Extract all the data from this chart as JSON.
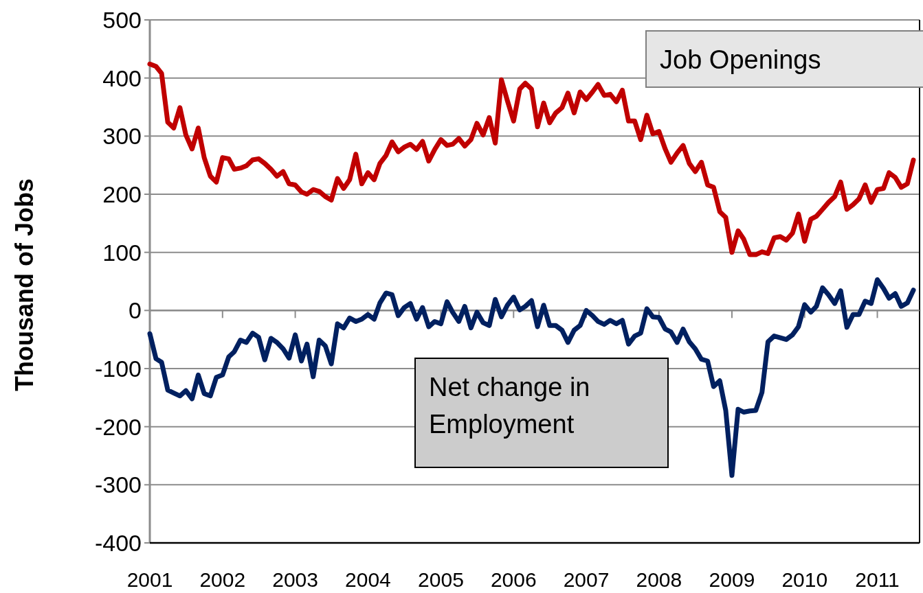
{
  "chart_data": {
    "type": "line",
    "ylabel": "Thousand of Jobs",
    "x": [
      "2001-01",
      "2001-02",
      "2001-03",
      "2001-04",
      "2001-05",
      "2001-06",
      "2001-07",
      "2001-08",
      "2001-09",
      "2001-10",
      "2001-11",
      "2001-12",
      "2002-01",
      "2002-02",
      "2002-03",
      "2002-04",
      "2002-05",
      "2002-06",
      "2002-07",
      "2002-08",
      "2002-09",
      "2002-10",
      "2002-11",
      "2002-12",
      "2003-01",
      "2003-02",
      "2003-03",
      "2003-04",
      "2003-05",
      "2003-06",
      "2003-07",
      "2003-08",
      "2003-09",
      "2003-10",
      "2003-11",
      "2003-12",
      "2004-01",
      "2004-02",
      "2004-03",
      "2004-04",
      "2004-05",
      "2004-06",
      "2004-07",
      "2004-08",
      "2004-09",
      "2004-10",
      "2004-11",
      "2004-12",
      "2005-01",
      "2005-02",
      "2005-03",
      "2005-04",
      "2005-05",
      "2005-06",
      "2005-07",
      "2005-08",
      "2005-09",
      "2005-10",
      "2005-11",
      "2005-12",
      "2006-01",
      "2006-02",
      "2006-03",
      "2006-04",
      "2006-05",
      "2006-06",
      "2006-07",
      "2006-08",
      "2006-09",
      "2006-10",
      "2006-11",
      "2006-12",
      "2007-01",
      "2007-02",
      "2007-03",
      "2007-04",
      "2007-05",
      "2007-06",
      "2007-07",
      "2007-08",
      "2007-09",
      "2007-10",
      "2007-11",
      "2007-12",
      "2008-01",
      "2008-02",
      "2008-03",
      "2008-04",
      "2008-05",
      "2008-06",
      "2008-07",
      "2008-08",
      "2008-09",
      "2008-10",
      "2008-11",
      "2008-12",
      "2009-01",
      "2009-02",
      "2009-03",
      "2009-04",
      "2009-05",
      "2009-06",
      "2009-07",
      "2009-08",
      "2009-09",
      "2009-10",
      "2009-11",
      "2009-12",
      "2010-01",
      "2010-02",
      "2010-03",
      "2010-04",
      "2010-05",
      "2010-06",
      "2010-07",
      "2010-08",
      "2010-09",
      "2010-10",
      "2010-11",
      "2010-12",
      "2011-01",
      "2011-02",
      "2011-03",
      "2011-04",
      "2011-05",
      "2011-06",
      "2011-07"
    ],
    "series": [
      {
        "name": "Job Openings",
        "color": "#c00000",
        "values": [
          424,
          420,
          408,
          324,
          314,
          349,
          302,
          278,
          314,
          263,
          231,
          221,
          263,
          261,
          243,
          245,
          249,
          259,
          261,
          253,
          243,
          231,
          239,
          218,
          216,
          204,
          200,
          208,
          205,
          196,
          190,
          227,
          210,
          225,
          269,
          218,
          237,
          225,
          253,
          267,
          290,
          273,
          281,
          286,
          277,
          291,
          257,
          277,
          294,
          284,
          286,
          296,
          283,
          294,
          322,
          302,
          332,
          288,
          397,
          361,
          326,
          381,
          391,
          381,
          316,
          357,
          323,
          340,
          349,
          374,
          340,
          376,
          363,
          376,
          389,
          370,
          372,
          359,
          379,
          326,
          326,
          294,
          336,
          304,
          308,
          278,
          255,
          271,
          284,
          253,
          239,
          255,
          216,
          212,
          170,
          160,
          100,
          137,
          123,
          96,
          96,
          101,
          98,
          125,
          127,
          121,
          133,
          166,
          119,
          157,
          162,
          174,
          186,
          196,
          221,
          174,
          182,
          192,
          216,
          186,
          208,
          210,
          237,
          229,
          212,
          218,
          259
        ]
      },
      {
        "name": "Net change in Employment",
        "color": "#002060",
        "values": [
          -40,
          -83,
          -89,
          -137,
          -142,
          -147,
          -138,
          -152,
          -111,
          -143,
          -147,
          -115,
          -111,
          -80,
          -71,
          -51,
          -55,
          -39,
          -46,
          -85,
          -48,
          -55,
          -66,
          -82,
          -42,
          -87,
          -58,
          -114,
          -51,
          -61,
          -92,
          -23,
          -30,
          -13,
          -19,
          -15,
          -7,
          -15,
          13,
          30,
          27,
          -9,
          5,
          12,
          -15,
          5,
          -28,
          -19,
          -23,
          15,
          -3,
          -19,
          7,
          -30,
          -3,
          -21,
          -26,
          19,
          -11,
          9,
          23,
          1,
          7,
          17,
          -28,
          9,
          -26,
          -26,
          -34,
          -55,
          -34,
          -26,
          0,
          -9,
          -19,
          -24,
          -17,
          -23,
          -17,
          -58,
          -44,
          -39,
          3,
          -11,
          -12,
          -32,
          -37,
          -55,
          -32,
          -54,
          -66,
          -84,
          -87,
          -131,
          -121,
          -172,
          -284,
          -170,
          -175,
          -173,
          -172,
          -141,
          -54,
          -44,
          -47,
          -50,
          -42,
          -28,
          10,
          -3,
          7,
          39,
          27,
          12,
          34,
          -29,
          -7,
          -7,
          16,
          12,
          53,
          38,
          21,
          29,
          7,
          13,
          35
        ]
      }
    ],
    "xlim": [
      "2001-01",
      "2011-08"
    ],
    "xticks": [
      "2001",
      "2002",
      "2003",
      "2004",
      "2005",
      "2006",
      "2007",
      "2008",
      "2009",
      "2010",
      "2011"
    ],
    "ylim": [
      -400,
      500
    ],
    "yticks": [
      -400,
      -300,
      -200,
      -100,
      0,
      100,
      200,
      300,
      400,
      500
    ],
    "grid": "y",
    "marker": "none",
    "line_style": "solid"
  }
}
